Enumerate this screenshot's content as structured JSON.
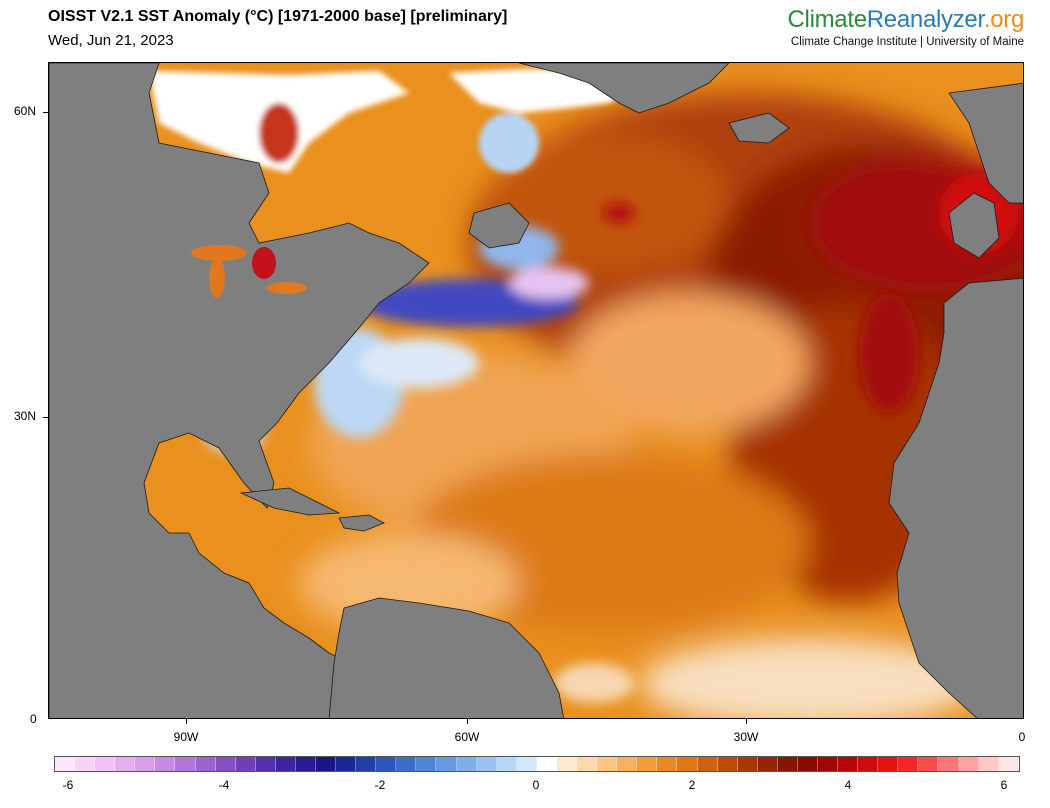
{
  "header": {
    "title": "OISST V2.1 SST Anomaly (°C) [1971-2000 base] [preliminary]",
    "date": "Wed, Jun 21, 2023"
  },
  "brand": {
    "name_part1": "Climate",
    "name_part2": "Reanalyzer",
    "name_part3": ".org",
    "subtitle": "Climate Change Institute | University of Maine"
  },
  "map": {
    "lat_labels": [
      "60N",
      "30N",
      "0"
    ],
    "lon_labels": [
      "90W",
      "60W",
      "30W",
      "0"
    ],
    "land_color": "#7f7f7f",
    "ocean_base_color": "#e9901e"
  },
  "colorbar": {
    "labels": [
      "-6",
      "-4",
      "-2",
      "0",
      "2",
      "4",
      "6"
    ],
    "colors": [
      "#fde6fb",
      "#f7d4f7",
      "#f0c2f3",
      "#e6b0f0",
      "#d99dea",
      "#c88ae2",
      "#b477d8",
      "#9d63ce",
      "#8650c3",
      "#6e3fb8",
      "#5630ac",
      "#3f249d",
      "#2b1a90",
      "#1b1585",
      "#1b2796",
      "#223ea8",
      "#2c56ba",
      "#3b6dc9",
      "#4f85d6",
      "#669ae0",
      "#80afe8",
      "#9bc3ef",
      "#b7d6f5",
      "#d3e7fa",
      "#ffffff",
      "#fde9cf",
      "#fcd8ab",
      "#fbc585",
      "#f9b15f",
      "#f39c3c",
      "#eb8a22",
      "#df7715",
      "#cf620e",
      "#bd4c09",
      "#a93706",
      "#952404",
      "#841603",
      "#8a0b03",
      "#a10606",
      "#b90707",
      "#d00a0a",
      "#e51212",
      "#f52525",
      "#fa4a4a",
      "#fc7676",
      "#fda1a1",
      "#fec8c8",
      "#ffe6e6"
    ]
  }
}
